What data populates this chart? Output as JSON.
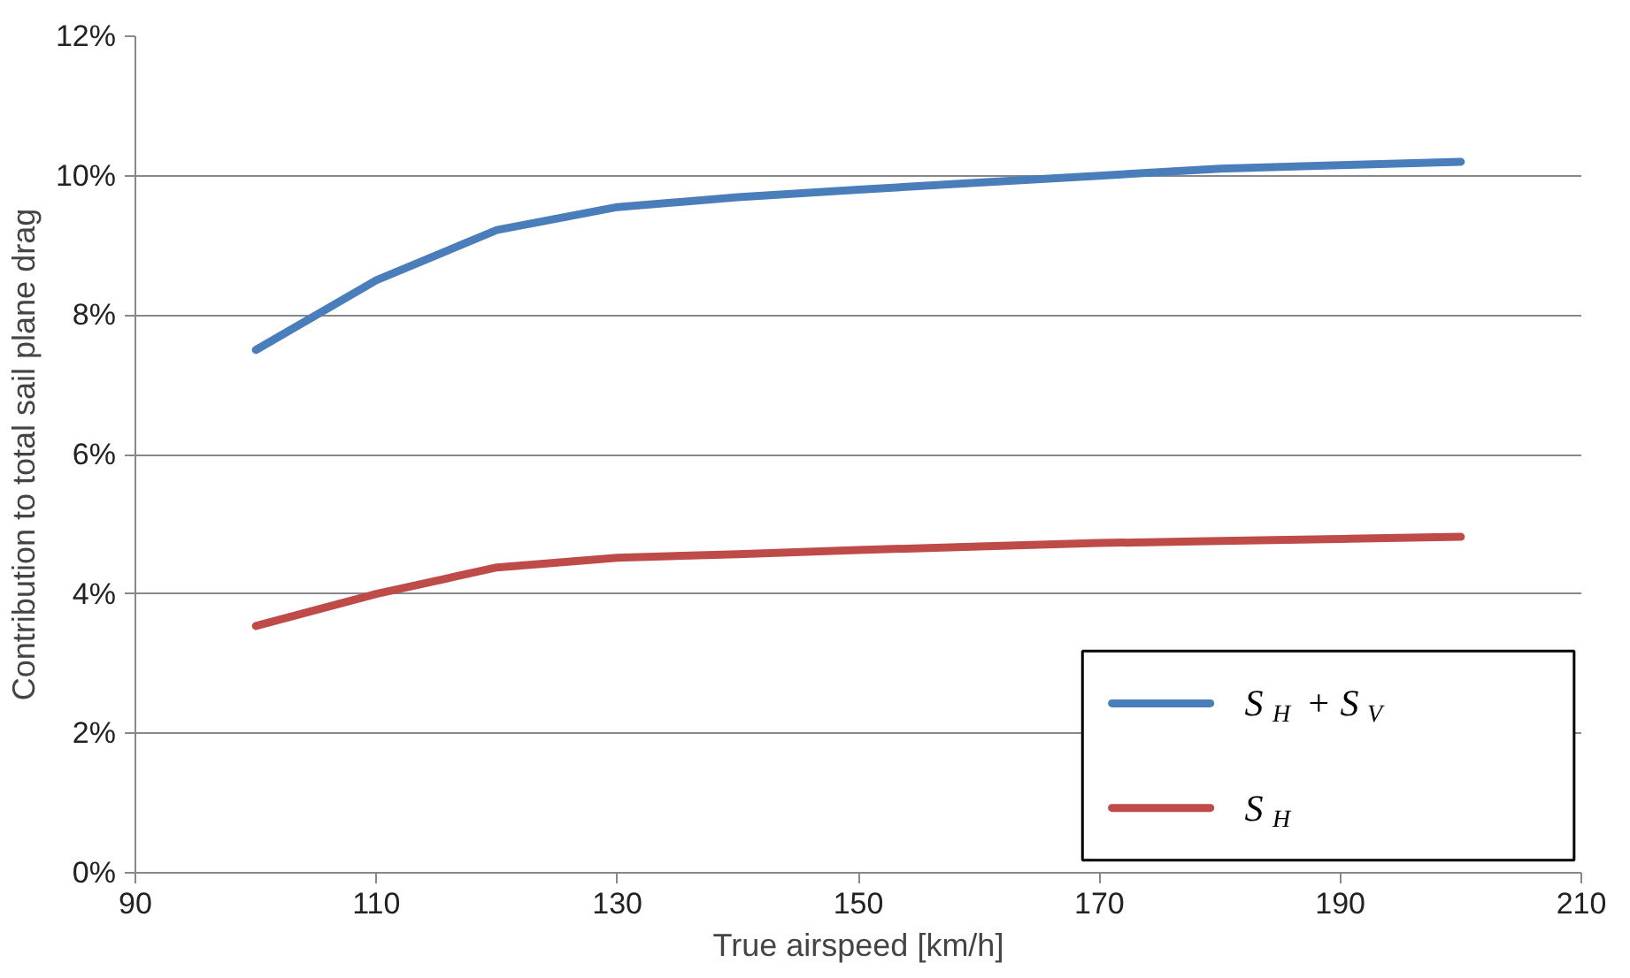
{
  "chart_data": {
    "type": "line",
    "xlabel": "True airspeed [km/h]",
    "ylabel": "Contribution to total sail plane drag",
    "x": [
      100,
      110,
      120,
      130,
      140,
      150,
      160,
      170,
      180,
      190,
      200
    ],
    "series": [
      {
        "name": "S$_{H}$ + S$_{V}$",
        "color": "#4a7ebb",
        "values": [
          7.5,
          8.5,
          9.22,
          9.55,
          9.69,
          9.8,
          9.9,
          10.0,
          10.1,
          10.15,
          10.2
        ]
      },
      {
        "name": "S$_{H}$",
        "color": "#be4b48",
        "values": [
          3.54,
          4.0,
          4.38,
          4.52,
          4.57,
          4.63,
          4.68,
          4.73,
          4.76,
          4.79,
          4.82
        ]
      }
    ],
    "xlim": [
      90,
      210
    ],
    "xticks": [
      90,
      110,
      130,
      150,
      170,
      190,
      210
    ],
    "ylim": [
      0,
      12
    ],
    "yticks": [
      {
        "value": 0,
        "label": "0%"
      },
      {
        "value": 2,
        "label": "2%"
      },
      {
        "value": 4,
        "label": "4%"
      },
      {
        "value": 6,
        "label": "6%"
      },
      {
        "value": 8,
        "label": "8%"
      },
      {
        "value": 10,
        "label": "10%"
      },
      {
        "value": 12,
        "label": "12%"
      }
    ],
    "grid": "y",
    "legend": "bottom right",
    "marker": "none",
    "line_style": "solid"
  }
}
